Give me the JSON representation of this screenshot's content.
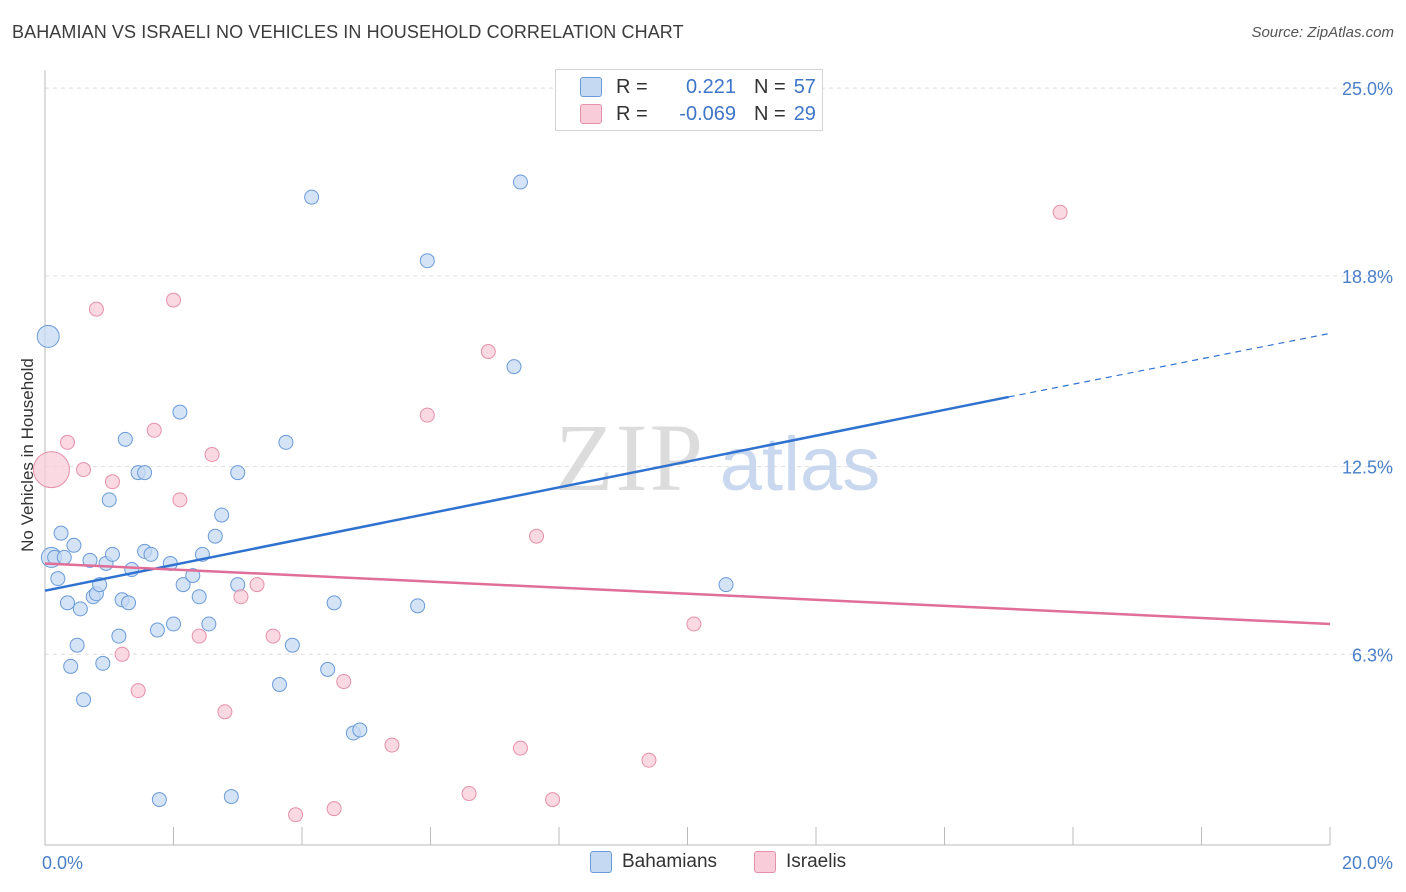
{
  "title": "BAHAMIAN VS ISRAELI NO VEHICLES IN HOUSEHOLD CORRELATION CHART",
  "source": "Source: ZipAtlas.com",
  "watermark": {
    "zip": "ZIP",
    "atlas": "atlas"
  },
  "legend_top": {
    "rows": [
      {
        "r_label": "R =",
        "r_value": "0.221",
        "n_label": "N =",
        "n_value": "57"
      },
      {
        "r_label": "R =",
        "r_value": "-0.069",
        "n_label": "N =",
        "n_value": "29"
      }
    ]
  },
  "legend_bottom": {
    "items": [
      "Bahamians",
      "Israelis"
    ]
  },
  "colors": {
    "blue_fill": "#c5d9f3",
    "blue_stroke": "#6a9bd8",
    "blue_line": "#2f72d0",
    "pink_fill": "#f9ccd9",
    "pink_stroke": "#e590aa",
    "pink_line": "#e06e98",
    "grid": "#dddddd",
    "tick_text": "#4a7fc8"
  },
  "chart_data": {
    "type": "scatter",
    "title": "BAHAMIAN VS ISRAELI NO VEHICLES IN HOUSEHOLD CORRELATION CHART",
    "xlabel": "",
    "ylabel": "No Vehicles in Household",
    "xlim": [
      0,
      20
    ],
    "ylim": [
      0,
      25.6
    ],
    "x_tick_labels": [
      "0.0%",
      "20.0%"
    ],
    "x_tick_values": [
      0,
      20
    ],
    "y_tick_labels": [
      "6.3%",
      "12.5%",
      "18.8%",
      "25.0%"
    ],
    "y_tick_values": [
      6.3,
      12.5,
      18.8,
      25.0
    ],
    "grid": true,
    "series": [
      {
        "name": "Bahamians",
        "r": 0.221,
        "n": 57,
        "trend": {
          "x0": 0,
          "y0": 8.4,
          "x1": 15.0,
          "y1": 14.8,
          "dashed_to_x": 20,
          "dashed_to_y": 16.9
        },
        "points": [
          [
            0.05,
            16.8,
            22
          ],
          [
            0.1,
            9.5,
            20
          ],
          [
            0.15,
            9.5,
            14
          ],
          [
            0.2,
            8.8,
            14
          ],
          [
            0.25,
            10.3,
            14
          ],
          [
            0.3,
            9.5,
            14
          ],
          [
            0.35,
            8.0,
            14
          ],
          [
            0.4,
            5.9,
            14
          ],
          [
            0.45,
            9.9,
            14
          ],
          [
            0.5,
            6.6,
            14
          ],
          [
            0.55,
            7.8,
            14
          ],
          [
            0.6,
            4.8,
            14
          ],
          [
            0.7,
            9.4,
            14
          ],
          [
            0.75,
            8.2,
            14
          ],
          [
            0.8,
            8.3,
            14
          ],
          [
            0.85,
            8.6,
            14
          ],
          [
            0.9,
            6.0,
            14
          ],
          [
            0.95,
            9.3,
            14
          ],
          [
            1.0,
            11.4,
            14
          ],
          [
            1.05,
            9.6,
            14
          ],
          [
            1.15,
            6.9,
            14
          ],
          [
            1.2,
            8.1,
            14
          ],
          [
            1.25,
            13.4,
            14
          ],
          [
            1.3,
            8.0,
            14
          ],
          [
            1.35,
            9.1,
            14
          ],
          [
            1.45,
            12.3,
            14
          ],
          [
            1.55,
            12.3,
            14
          ],
          [
            1.55,
            9.7,
            14
          ],
          [
            1.65,
            9.6,
            14
          ],
          [
            1.75,
            7.1,
            14
          ],
          [
            1.78,
            1.5,
            14
          ],
          [
            1.95,
            9.3,
            14
          ],
          [
            2.0,
            7.3,
            14
          ],
          [
            2.1,
            14.3,
            14
          ],
          [
            2.15,
            8.6,
            14
          ],
          [
            2.3,
            8.9,
            14
          ],
          [
            2.4,
            8.2,
            14
          ],
          [
            2.45,
            9.6,
            14
          ],
          [
            2.55,
            7.3,
            14
          ],
          [
            2.65,
            10.2,
            14
          ],
          [
            2.75,
            10.9,
            14
          ],
          [
            2.9,
            1.6,
            14
          ],
          [
            3.0,
            8.6,
            14
          ],
          [
            3.0,
            12.3,
            14
          ],
          [
            3.65,
            5.3,
            14
          ],
          [
            3.75,
            13.3,
            14
          ],
          [
            3.85,
            6.6,
            14
          ],
          [
            4.15,
            21.4,
            14
          ],
          [
            4.4,
            5.8,
            14
          ],
          [
            4.5,
            8.0,
            14
          ],
          [
            4.8,
            3.7,
            14
          ],
          [
            4.9,
            3.8,
            14
          ],
          [
            5.8,
            7.9,
            14
          ],
          [
            5.95,
            19.3,
            14
          ],
          [
            7.3,
            15.8,
            14
          ],
          [
            7.4,
            21.9,
            14
          ],
          [
            10.6,
            8.6,
            14
          ]
        ]
      },
      {
        "name": "Israelis",
        "r": -0.069,
        "n": 29,
        "trend": {
          "x0": 0,
          "y0": 9.3,
          "x1": 20,
          "y1": 7.3
        },
        "points": [
          [
            0.1,
            12.4,
            36
          ],
          [
            0.35,
            13.3,
            14
          ],
          [
            0.6,
            12.4,
            14
          ],
          [
            0.8,
            17.7,
            14
          ],
          [
            1.05,
            12.0,
            14
          ],
          [
            1.2,
            6.3,
            14
          ],
          [
            1.45,
            5.1,
            14
          ],
          [
            1.7,
            13.7,
            14
          ],
          [
            2.0,
            18.0,
            14
          ],
          [
            2.1,
            11.4,
            14
          ],
          [
            2.4,
            6.9,
            14
          ],
          [
            2.6,
            12.9,
            14
          ],
          [
            2.8,
            4.4,
            14
          ],
          [
            3.05,
            8.2,
            14
          ],
          [
            3.3,
            8.6,
            14
          ],
          [
            3.55,
            6.9,
            14
          ],
          [
            3.9,
            1.0,
            14
          ],
          [
            4.5,
            1.2,
            14
          ],
          [
            4.65,
            5.4,
            14
          ],
          [
            5.4,
            3.3,
            14
          ],
          [
            5.95,
            14.2,
            14
          ],
          [
            6.6,
            1.7,
            14
          ],
          [
            6.9,
            16.3,
            14
          ],
          [
            7.4,
            3.2,
            14
          ],
          [
            7.65,
            10.2,
            14
          ],
          [
            7.9,
            1.5,
            14
          ],
          [
            9.4,
            2.8,
            14
          ],
          [
            10.1,
            7.3,
            14
          ],
          [
            15.8,
            20.9,
            14
          ]
        ]
      }
    ]
  }
}
